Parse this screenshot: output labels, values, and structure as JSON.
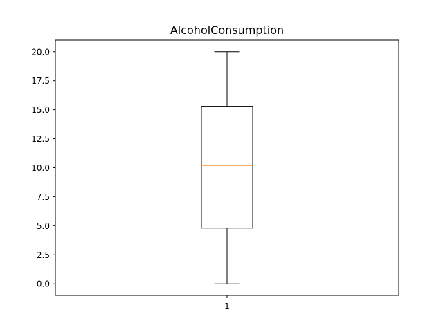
{
  "chart_data": {
    "type": "box",
    "title": "AlcoholConsumption",
    "xlabel": "",
    "ylabel": "",
    "categories": [
      "1"
    ],
    "ylim": [
      -1.0,
      21.0
    ],
    "yticks": [
      {
        "value": 0.0,
        "label": "0.0"
      },
      {
        "value": 2.5,
        "label": "2.5"
      },
      {
        "value": 5.0,
        "label": "5.0"
      },
      {
        "value": 7.5,
        "label": "7.5"
      },
      {
        "value": 10.0,
        "label": "10.0"
      },
      {
        "value": 12.5,
        "label": "12.5"
      },
      {
        "value": 15.0,
        "label": "15.0"
      },
      {
        "value": 17.5,
        "label": "17.5"
      },
      {
        "value": 20.0,
        "label": "20.0"
      }
    ],
    "boxes": [
      {
        "category": "1",
        "whisker_low": 0.0,
        "q1": 4.8,
        "median": 10.2,
        "q3": 15.3,
        "whisker_high": 20.0
      }
    ],
    "grid": false,
    "colors": {
      "box": "#000000",
      "median": "#ff7f0e",
      "axes": "#000000"
    }
  }
}
